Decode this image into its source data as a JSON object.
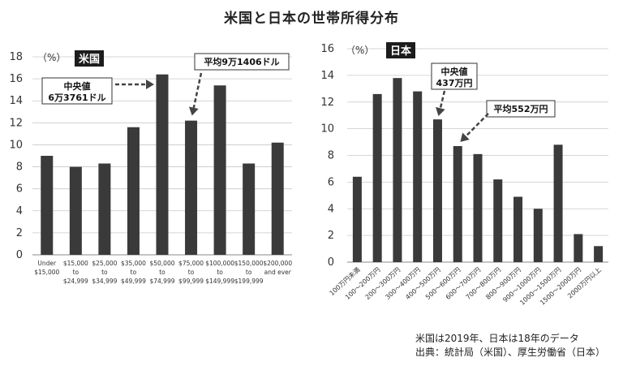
{
  "title": "米国と日本の世帯所得分布",
  "chart_data": [
    {
      "type": "bar",
      "badge": "米国",
      "unit_label": "（%）",
      "ylim": [
        0,
        18
      ],
      "y_ticks": [
        "0",
        "2",
        "4",
        "6",
        "8",
        "10",
        "12",
        "14",
        "16",
        "18"
      ],
      "categories": [
        [
          "Under",
          "$15,000"
        ],
        [
          "$15,000",
          "to",
          "$24,999"
        ],
        [
          "$25,000",
          "to",
          "$34,999"
        ],
        [
          "$35,000",
          "to",
          "$49,999"
        ],
        [
          "$50,000",
          "to",
          "$74,999"
        ],
        [
          "$75,000",
          "to",
          "$99,999"
        ],
        [
          "$100,000",
          "to",
          "$149,999"
        ],
        [
          "$150,000",
          "to",
          "$199,999"
        ],
        [
          "$200,000",
          "and ever"
        ]
      ],
      "values": [
        9.0,
        8.0,
        8.3,
        11.6,
        16.4,
        12.2,
        15.4,
        8.3,
        10.2
      ],
      "annotations": [
        {
          "lines": [
            "中央値",
            "6万3761ドル"
          ],
          "target_index": 4
        },
        {
          "lines": [
            "平均9万1406ドル"
          ],
          "target_index": 5
        }
      ]
    },
    {
      "type": "bar",
      "badge": "日本",
      "unit_label": "（%）",
      "ylim": [
        0,
        16
      ],
      "y_ticks": [
        "0",
        "2",
        "4",
        "6",
        "8",
        "10",
        "12",
        "14",
        "16"
      ],
      "categories": [
        "100万円未満",
        "100～200万円",
        "200～300万円",
        "300～400万円",
        "400～500万円",
        "500～600万円",
        "600～700万円",
        "700～800万円",
        "800～900万円",
        "900～1000万円",
        "1000～1500万円",
        "1500～2000万円",
        "2000万円以上"
      ],
      "values": [
        6.4,
        12.6,
        13.8,
        12.8,
        10.7,
        8.7,
        8.1,
        6.2,
        4.9,
        4.0,
        8.8,
        2.1,
        1.2
      ],
      "annotations": [
        {
          "lines": [
            "中央値",
            "437万円"
          ],
          "target_index": 4
        },
        {
          "lines": [
            "平均552万円"
          ],
          "target_index": 5
        }
      ]
    }
  ],
  "notes": [
    "米国は2019年、日本は18年のデータ",
    "出典：統計局（米国）、厚生労働省（日本）"
  ]
}
